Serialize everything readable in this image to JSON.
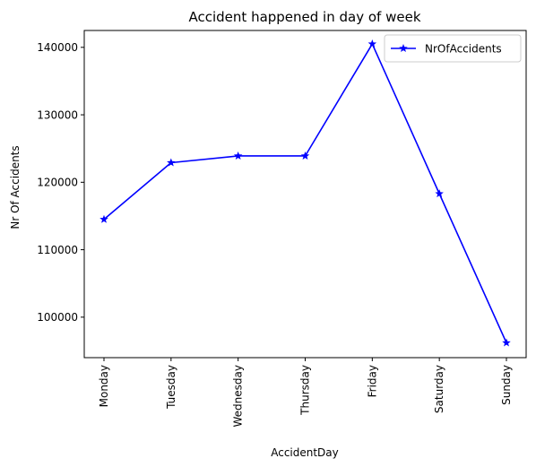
{
  "chart_data": {
    "type": "line",
    "title": "Accident happened in day of week",
    "xlabel": "AccidentDay",
    "ylabel": "Nr Of Accidents",
    "categories": [
      "Monday",
      "Tuesday",
      "Wednesday",
      "Thursday",
      "Friday",
      "Saturday",
      "Sunday"
    ],
    "series": [
      {
        "name": "NrOfAccidents",
        "color": "#0000ff",
        "marker": "star",
        "values": [
          114500,
          122900,
          123900,
          123900,
          140500,
          118300,
          96200
        ]
      }
    ],
    "ylim": [
      94000,
      142500
    ],
    "yticks": [
      100000,
      110000,
      120000,
      130000,
      140000
    ],
    "ytick_labels": [
      "100000",
      "110000",
      "120000",
      "130000",
      "140000"
    ],
    "legend_position": "top-right",
    "grid": false
  }
}
